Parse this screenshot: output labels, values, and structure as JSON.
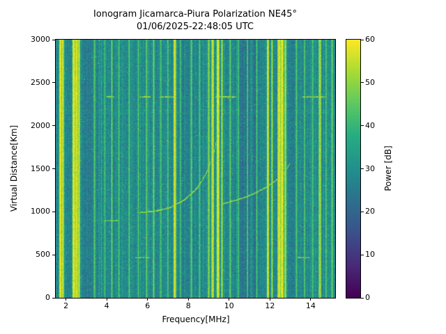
{
  "chart_data": {
    "type": "heatmap",
    "title": "Ionogram Jicamarca-Piura Polarization NE45°",
    "subtitle": "01/06/2025-22:48:05 UTC",
    "xlabel": "Frequency[MHz]",
    "ylabel": "Virtual Distance[Km]",
    "colorbar_label": "Power [dB]",
    "colormap": "viridis",
    "x_range": [
      1.5,
      15.2
    ],
    "y_range": [
      0,
      3000
    ],
    "color_range": [
      0,
      60
    ],
    "x_ticks": [
      2,
      4,
      6,
      8,
      10,
      12,
      14
    ],
    "y_ticks": [
      0,
      500,
      1000,
      1500,
      2000,
      2500,
      3000
    ],
    "colorbar_ticks": [
      0,
      10,
      20,
      30,
      40,
      50,
      60
    ],
    "grid": false,
    "background_power_db": {
      "mean": 29,
      "std": 3.2,
      "column_striation_std": 2.2,
      "row_striation_std": 0.8,
      "speckle_probability": 0.003
    },
    "rfi_lines": [
      {
        "freq_mhz": 1.72,
        "power_db": 60,
        "width_mhz": 0.05
      },
      {
        "freq_mhz": 1.84,
        "power_db": 58,
        "width_mhz": 0.04
      },
      {
        "freq_mhz": 2.38,
        "power_db": 60,
        "width_mhz": 0.06
      },
      {
        "freq_mhz": 2.52,
        "power_db": 59,
        "width_mhz": 0.05
      },
      {
        "freq_mhz": 2.64,
        "power_db": 57,
        "width_mhz": 0.03
      },
      {
        "freq_mhz": 3.4,
        "power_db": 46,
        "width_mhz": 0.03
      },
      {
        "freq_mhz": 3.9,
        "power_db": 44,
        "width_mhz": 0.03
      },
      {
        "freq_mhz": 4.25,
        "power_db": 47,
        "width_mhz": 0.03
      },
      {
        "freq_mhz": 4.6,
        "power_db": 45,
        "width_mhz": 0.03
      },
      {
        "freq_mhz": 5.1,
        "power_db": 46,
        "width_mhz": 0.03
      },
      {
        "freq_mhz": 5.55,
        "power_db": 44,
        "width_mhz": 0.03
      },
      {
        "freq_mhz": 5.95,
        "power_db": 47,
        "width_mhz": 0.03
      },
      {
        "freq_mhz": 6.3,
        "power_db": 48,
        "width_mhz": 0.03
      },
      {
        "freq_mhz": 6.65,
        "power_db": 45,
        "width_mhz": 0.03
      },
      {
        "freq_mhz": 7.0,
        "power_db": 46,
        "width_mhz": 0.03
      },
      {
        "freq_mhz": 7.33,
        "power_db": 58,
        "width_mhz": 0.05
      },
      {
        "freq_mhz": 7.62,
        "power_db": 45,
        "width_mhz": 0.03
      },
      {
        "freq_mhz": 8.15,
        "power_db": 47,
        "width_mhz": 0.03
      },
      {
        "freq_mhz": 8.55,
        "power_db": 45,
        "width_mhz": 0.03
      },
      {
        "freq_mhz": 9.0,
        "power_db": 50,
        "width_mhz": 0.04
      },
      {
        "freq_mhz": 9.2,
        "power_db": 57,
        "width_mhz": 0.05
      },
      {
        "freq_mhz": 9.45,
        "power_db": 59,
        "width_mhz": 0.06
      },
      {
        "freq_mhz": 9.65,
        "power_db": 52,
        "width_mhz": 0.04
      },
      {
        "freq_mhz": 10.05,
        "power_db": 47,
        "width_mhz": 0.03
      },
      {
        "freq_mhz": 10.45,
        "power_db": 45,
        "width_mhz": 0.03
      },
      {
        "freq_mhz": 10.9,
        "power_db": 46,
        "width_mhz": 0.03
      },
      {
        "freq_mhz": 11.35,
        "power_db": 44,
        "width_mhz": 0.03
      },
      {
        "freq_mhz": 11.9,
        "power_db": 58,
        "width_mhz": 0.05
      },
      {
        "freq_mhz": 12.1,
        "power_db": 52,
        "width_mhz": 0.04
      },
      {
        "freq_mhz": 12.45,
        "power_db": 59,
        "width_mhz": 0.06
      },
      {
        "freq_mhz": 12.6,
        "power_db": 60,
        "width_mhz": 0.06
      },
      {
        "freq_mhz": 12.75,
        "power_db": 55,
        "width_mhz": 0.04
      },
      {
        "freq_mhz": 13.3,
        "power_db": 45,
        "width_mhz": 0.03
      },
      {
        "freq_mhz": 13.7,
        "power_db": 46,
        "width_mhz": 0.03
      },
      {
        "freq_mhz": 14.1,
        "power_db": 45,
        "width_mhz": 0.03
      },
      {
        "freq_mhz": 14.45,
        "power_db": 54,
        "width_mhz": 0.05
      },
      {
        "freq_mhz": 14.75,
        "power_db": 46,
        "width_mhz": 0.03
      },
      {
        "freq_mhz": 15.05,
        "power_db": 48,
        "width_mhz": 0.03
      }
    ],
    "dark_bands": [
      {
        "range": [
          2.15,
          2.3
        ],
        "delta_db": -3
      },
      {
        "range": [
          2.9,
          3.25
        ],
        "delta_db": -4
      },
      {
        "range": [
          7.7,
          7.95
        ],
        "delta_db": -3
      },
      {
        "range": [
          10.55,
          11.5
        ],
        "delta_db": -4
      },
      {
        "range": [
          13.0,
          13.2
        ],
        "delta_db": -4
      }
    ],
    "bright_bands": [
      {
        "range": [
          1.6,
          2.75
        ],
        "delta_db": 2
      },
      {
        "range": [
          9.1,
          9.7
        ],
        "delta_db": 3
      },
      {
        "range": [
          12.35,
          12.85
        ],
        "delta_db": 3
      }
    ],
    "echo_traces": [
      {
        "name": "o-mode-trace",
        "power_db": 50,
        "points": [
          [
            5.6,
            990
          ],
          [
            6.4,
            1010
          ],
          [
            7.1,
            1050
          ],
          [
            7.8,
            1140
          ],
          [
            8.4,
            1270
          ],
          [
            8.8,
            1420
          ],
          [
            9.05,
            1560
          ],
          [
            9.25,
            1700
          ],
          [
            9.35,
            1820
          ]
        ]
      },
      {
        "name": "x-mode-trace",
        "power_db": 48,
        "points": [
          [
            9.7,
            1095
          ],
          [
            10.4,
            1140
          ],
          [
            11.1,
            1200
          ],
          [
            11.8,
            1285
          ],
          [
            12.3,
            1370
          ],
          [
            12.7,
            1460
          ],
          [
            12.95,
            1560
          ]
        ]
      }
    ],
    "multiple_echo_segments": [
      {
        "km": 2337,
        "power_db": 52,
        "freq_ranges": [
          [
            4.0,
            4.35
          ],
          [
            5.6,
            6.15
          ],
          [
            6.6,
            7.3
          ],
          [
            9.3,
            10.4
          ],
          [
            13.55,
            14.65
          ]
        ]
      },
      {
        "km": 900,
        "power_db": 48,
        "freq_ranges": [
          [
            3.85,
            4.6
          ]
        ]
      },
      {
        "km": 470,
        "power_db": 48,
        "freq_ranges": [
          [
            5.4,
            6.1
          ],
          [
            13.35,
            13.95
          ]
        ]
      }
    ]
  },
  "colors": {
    "background": "#ffffff",
    "frame": "#000000",
    "text": "#000000",
    "colormap_low": "#440154",
    "colormap_mid": "#21918c",
    "colormap_high": "#fde725"
  }
}
